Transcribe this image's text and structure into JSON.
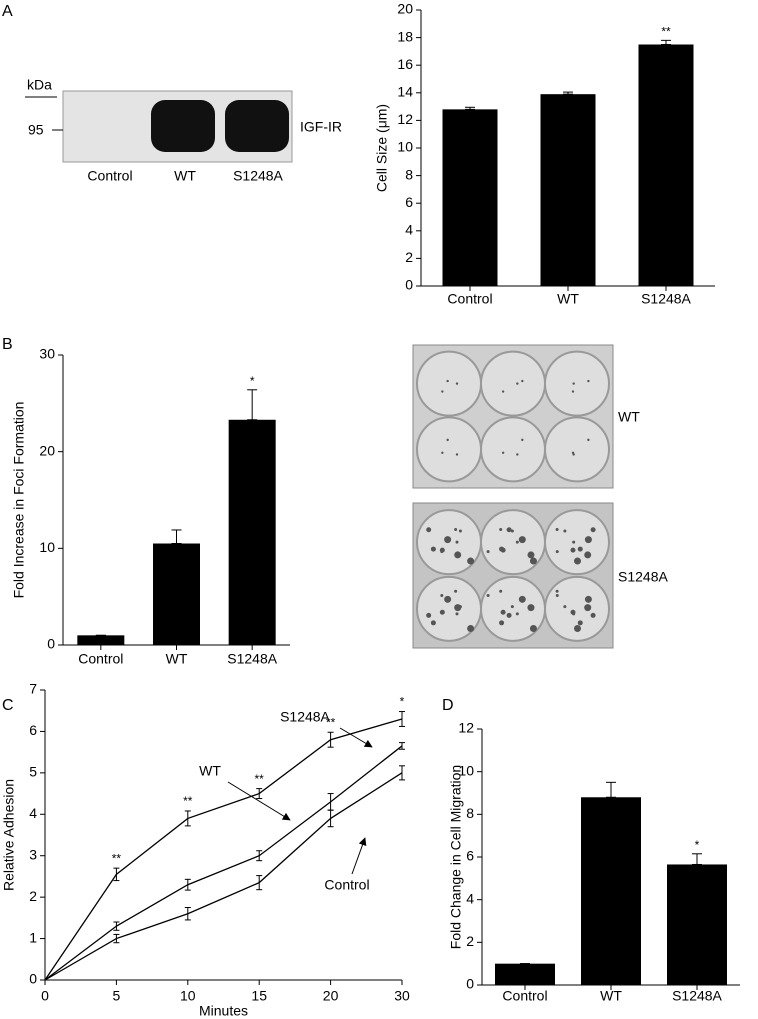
{
  "panel_labels": [
    "A",
    "B",
    "C",
    "D"
  ],
  "blot": {
    "marker_unit": "kDa",
    "marker": "95",
    "label": "IGF-IR",
    "lanes": [
      "Control",
      "WT",
      "S1248A"
    ]
  },
  "plates": [
    {
      "label": "WT"
    },
    {
      "label": "S1248A"
    }
  ],
  "chart_data": [
    {
      "type": "bar",
      "categories": [
        "Control",
        "WT",
        "S1248A"
      ],
      "values": [
        12.8,
        13.9,
        17.5
      ],
      "errors": [
        0.15,
        0.15,
        0.3
      ],
      "annotations": [
        null,
        null,
        "**"
      ],
      "color": "#000000",
      "y_label": "Cell Size (μm)",
      "ylim": [
        0,
        20
      ],
      "yticks": [
        0,
        2,
        4,
        6,
        8,
        10,
        12,
        14,
        16,
        18,
        20
      ]
    },
    {
      "type": "bar",
      "categories": [
        "Control",
        "WT",
        "S1248A"
      ],
      "values": [
        1.0,
        10.5,
        23.3
      ],
      "errors": [
        0,
        1.4,
        3.1
      ],
      "annotations": [
        null,
        null,
        "*"
      ],
      "color": "#000000",
      "y_label": "Fold Increase in Foci Formation",
      "ylim": [
        0,
        30
      ],
      "yticks": [
        0,
        10,
        20,
        30
      ]
    },
    {
      "type": "line",
      "categories": [
        "0",
        "5",
        "10",
        "15",
        "20",
        "30"
      ],
      "x_label": "Minutes",
      "y_label": "Relative Adhesion",
      "ylim": [
        0,
        7
      ],
      "yticks": [
        0,
        1,
        2,
        3,
        4,
        5,
        6,
        7
      ],
      "series": [
        {
          "name": "S1248A",
          "color": "#000000",
          "values": [
            0,
            2.55,
            3.9,
            4.5,
            5.8,
            6.3
          ],
          "errors": [
            0,
            0.15,
            0.18,
            0.12,
            0.18,
            0.18
          ],
          "annotations": [
            null,
            "**",
            "**",
            "**",
            "**",
            "*"
          ]
        },
        {
          "name": "WT",
          "color": "#000000",
          "values": [
            0,
            1.3,
            2.3,
            3.0,
            4.3,
            5.65
          ],
          "errors": [
            0,
            0.1,
            0.13,
            0.12,
            0.2,
            0.08
          ]
        },
        {
          "name": "Control",
          "color": "#000000",
          "values": [
            0,
            1.0,
            1.6,
            2.35,
            3.9,
            5.0
          ],
          "errors": [
            0,
            0.1,
            0.15,
            0.17,
            0.2,
            0.17
          ]
        }
      ]
    },
    {
      "type": "bar",
      "categories": [
        "Control",
        "WT",
        "S1248A"
      ],
      "values": [
        1.0,
        8.8,
        5.65
      ],
      "errors": [
        0,
        0.7,
        0.5
      ],
      "annotations": [
        null,
        null,
        "*"
      ],
      "color": "#000000",
      "y_label": "Fold Change in Cell Migration",
      "ylim": [
        0,
        12
      ],
      "yticks": [
        0,
        2,
        4,
        6,
        8,
        10,
        12
      ]
    }
  ]
}
